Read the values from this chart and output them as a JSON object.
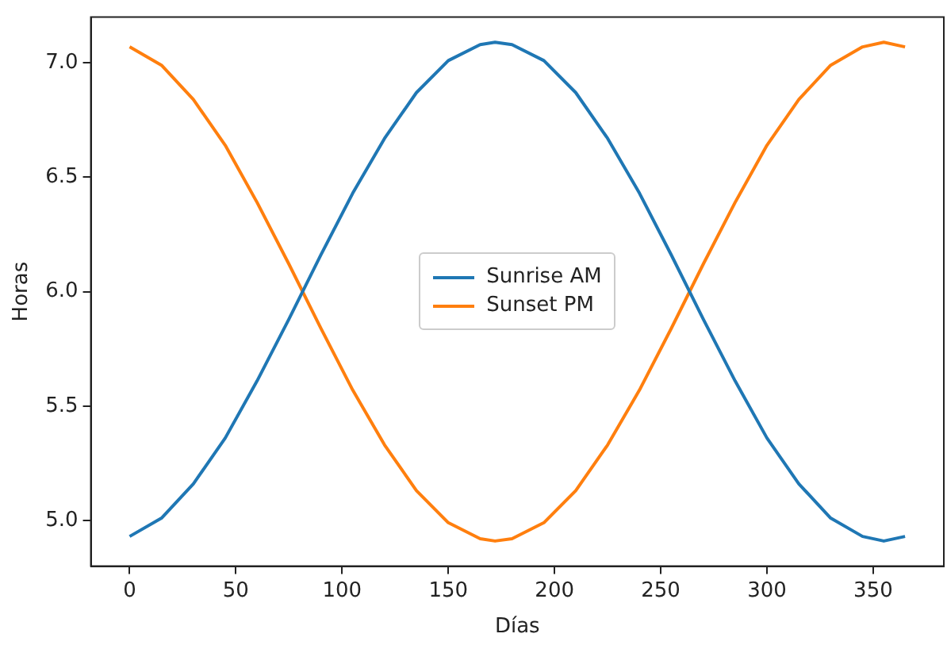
{
  "chart_data": {
    "type": "line",
    "xlabel": "Días",
    "ylabel": "Horas",
    "x": [
      0,
      15,
      30,
      45,
      60,
      75,
      90,
      105,
      120,
      135,
      150,
      165,
      172,
      180,
      195,
      210,
      225,
      240,
      255,
      270,
      285,
      300,
      315,
      330,
      345,
      355,
      365
    ],
    "series": [
      {
        "name": "Sunrise AM",
        "color": "#1f77b4",
        "values": [
          4.93,
          5.01,
          5.16,
          5.36,
          5.61,
          5.88,
          6.16,
          6.43,
          6.67,
          6.87,
          7.01,
          7.08,
          7.09,
          7.08,
          7.01,
          6.87,
          6.67,
          6.43,
          6.16,
          5.88,
          5.61,
          5.36,
          5.16,
          5.01,
          4.93,
          4.91,
          4.93
        ]
      },
      {
        "name": "Sunset PM",
        "color": "#ff7f0e",
        "values": [
          7.07,
          6.99,
          6.84,
          6.64,
          6.39,
          6.12,
          5.84,
          5.57,
          5.33,
          5.13,
          4.99,
          4.92,
          4.91,
          4.92,
          4.99,
          5.13,
          5.33,
          5.57,
          5.84,
          6.12,
          6.39,
          6.64,
          6.84,
          6.99,
          7.07,
          7.09,
          7.07
        ]
      }
    ],
    "xlim": [
      -18.25,
      383.25
    ],
    "ylim": [
      4.8,
      7.2
    ],
    "xticks": [
      0,
      50,
      100,
      150,
      200,
      250,
      300,
      350
    ],
    "yticks": [
      {
        "value": 5,
        "label": "5.0"
      },
      {
        "value": 5.5,
        "label": "5.5"
      },
      {
        "value": 6,
        "label": "6.0"
      },
      {
        "value": 6.5,
        "label": "6.5"
      },
      {
        "value": 7,
        "label": "7.0"
      }
    ],
    "grid": false,
    "legend": "center",
    "marker": "none",
    "line_style": "solid"
  }
}
